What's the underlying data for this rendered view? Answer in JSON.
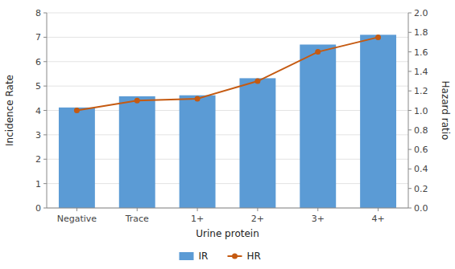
{
  "chart_data": {
    "type": "bar",
    "categories": [
      "Negative",
      "Trace",
      "1+",
      "2+",
      "3+",
      "4+"
    ],
    "series": [
      {
        "name": "IR",
        "type": "bar",
        "color": "#5B9BD5",
        "values": [
          4.12,
          4.58,
          4.62,
          5.32,
          6.7,
          7.1
        ]
      },
      {
        "name": "HR",
        "type": "line",
        "axis": "y2",
        "color": "#C55A11",
        "marker": "circle",
        "values": [
          1.0,
          1.1,
          1.12,
          1.3,
          1.6,
          1.75
        ]
      }
    ],
    "xlabel": "Urine protein",
    "ylabel": "Incidence Rate",
    "y2label": "Hazard ratio",
    "ylim": [
      0,
      8
    ],
    "yticks": [
      0,
      1,
      2,
      3,
      4,
      5,
      6,
      7,
      8
    ],
    "y2lim": [
      0,
      2
    ],
    "y2ticks": [
      {
        "value": 0,
        "label": "0.0"
      },
      0.2,
      0.4,
      0.6,
      0.8,
      {
        "value": 1.0,
        "label": "1.0"
      },
      1.2,
      1.4,
      1.6,
      1.8,
      {
        "value": 2.0,
        "label": "2.0"
      }
    ],
    "grid": true,
    "legend": "bottom"
  }
}
